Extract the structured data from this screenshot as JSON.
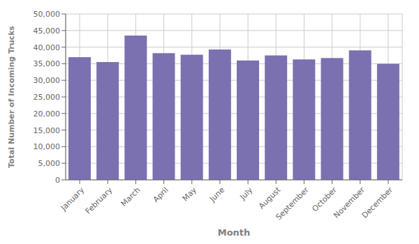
{
  "chart_data": {
    "type": "bar",
    "xlabel": "Month",
    "ylabel": "Total Number of Incoming Trucks",
    "categories": [
      "January",
      "February",
      "March",
      "April",
      "May",
      "June",
      "July",
      "August",
      "September",
      "October",
      "November",
      "December"
    ],
    "values": [
      37000,
      35500,
      43500,
      38200,
      37700,
      39300,
      36000,
      37500,
      36300,
      36700,
      39000,
      35000
    ],
    "color": "#7b71b0",
    "ylim": [
      0,
      50000
    ],
    "yticks": [
      0,
      {
        "value": 5000,
        "label": "5,000"
      },
      {
        "value": 10000,
        "label": "10,000"
      },
      {
        "value": 15000,
        "label": "15,000"
      },
      {
        "value": 20000,
        "label": "20,000"
      },
      {
        "value": 25000,
        "label": "25,000"
      },
      {
        "value": 30000,
        "label": "30,000"
      },
      {
        "value": 35000,
        "label": "35,000"
      },
      {
        "value": 40000,
        "label": "40,000"
      },
      {
        "value": 45000,
        "label": "45,000"
      },
      {
        "value": 50000,
        "label": "50,000"
      }
    ],
    "grid": true
  }
}
